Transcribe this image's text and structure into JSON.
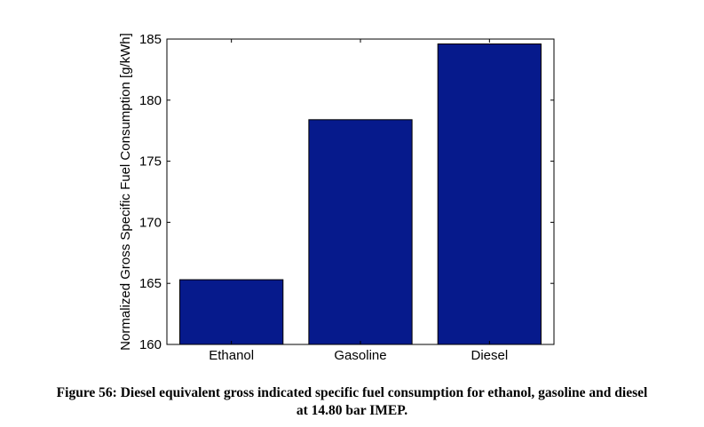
{
  "chart_data": {
    "type": "bar",
    "categories": [
      "Ethanol",
      "Gasoline",
      "Diesel"
    ],
    "values": [
      165.3,
      178.4,
      184.6
    ],
    "ylabel": "Normalized Gross Specific Fuel Consumption [g/kWh]",
    "ylim": [
      160,
      185
    ],
    "yticks": [
      160,
      165,
      170,
      175,
      180,
      185
    ],
    "bar_color": "#061a8c",
    "grid": false
  },
  "caption": {
    "line1": "Figure 56: Diesel equivalent gross indicated specific fuel consumption for ethanol, gasoline and diesel",
    "line2": "at 14.80 bar IMEP."
  }
}
